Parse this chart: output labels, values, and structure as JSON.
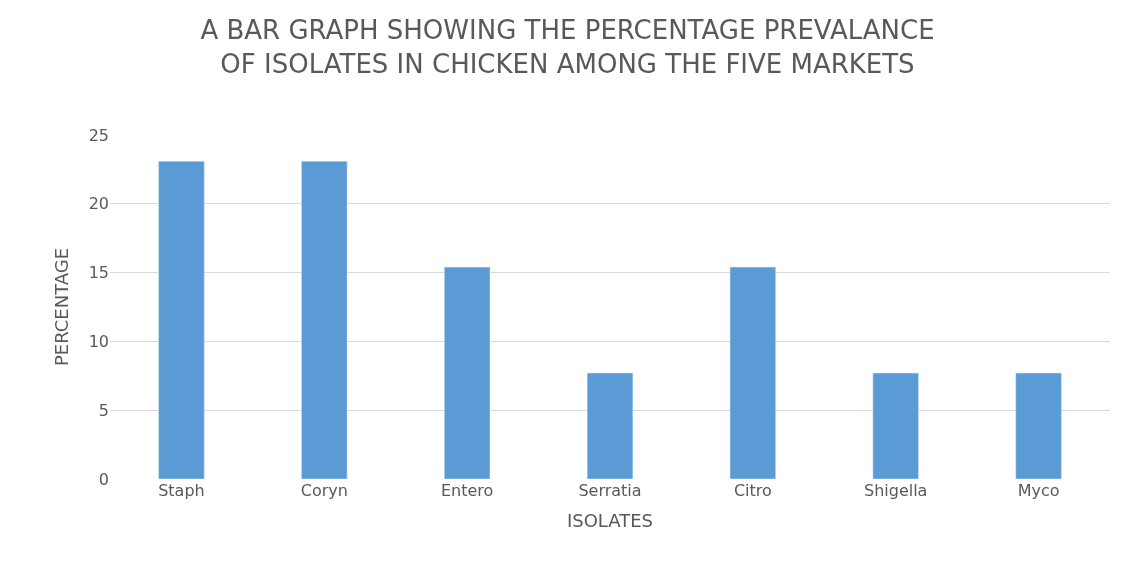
{
  "chart_data": {
    "type": "bar",
    "title": "A BAR GRAPH SHOWING THE PERCENTAGE PREVALANCE\nOF ISOLATES IN CHICKEN AMONG THE FIVE MARKETS",
    "xlabel": "ISOLATES",
    "ylabel": "PERCENTAGE",
    "categories": [
      "Staph",
      "Coryn",
      "Entero",
      "Serratia",
      "Citro",
      "Shigella",
      "Myco"
    ],
    "values": [
      23.1,
      23.1,
      15.4,
      7.7,
      15.4,
      7.7,
      7.7
    ],
    "color": "#5b9bd5",
    "ylim": [
      0,
      25
    ],
    "yticks": [
      0,
      5,
      10,
      15,
      20,
      25
    ],
    "grid": "y"
  }
}
